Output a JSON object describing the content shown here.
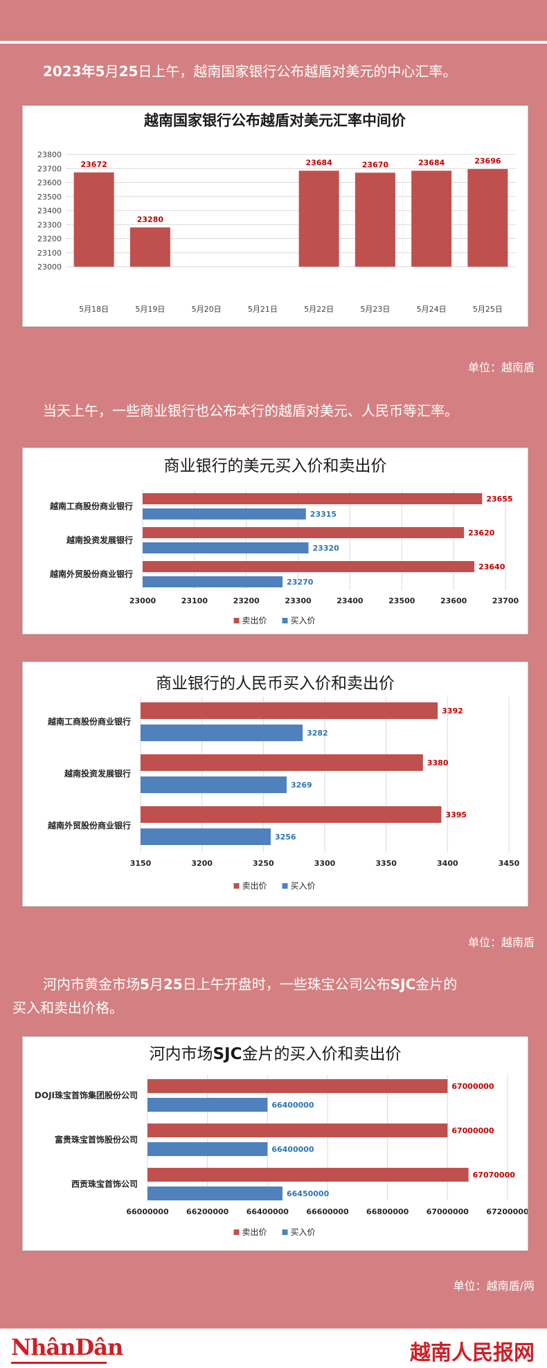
{
  "paragraphs": {
    "p1_a": "2023年",
    "p1_b": "5",
    "p1_c": "月",
    "p1_d": "25",
    "p1_e": "日上午，越南国家银行公布越盾对美元的中心汇率。",
    "p2": "当天上午，一些商业银行也公布本行的越盾对美元、人民币等汇率。",
    "p3_a": "河内市黄金市场",
    "p3_b": "5",
    "p3_c": "月",
    "p3_d": "25",
    "p3_e": "日上午开盘时，一些珠宝公司公布",
    "p3_f": "SJC",
    "p3_g": "金片的",
    "p3_h": "买入和卖出价格。"
  },
  "units": {
    "u1": "单位：越南盾",
    "u2": "单位：越南盾",
    "u3": "单位：越南盾/两"
  },
  "footer": {
    "logo": "NhânDân",
    "site": "越南人民报网"
  },
  "colors": {
    "sell": "#c0504d",
    "buy": "#4f81bd",
    "background": "#d48082"
  },
  "chart_data": [
    {
      "type": "bar",
      "title": "越南国家银行公布越盾对美元汇率中间价",
      "categories": [
        "5月18日",
        "5月19日",
        "5月20日",
        "5月21日",
        "5月22日",
        "5月23日",
        "5月24日",
        "5月25日"
      ],
      "values": [
        23672,
        23280,
        null,
        null,
        23684,
        23670,
        23684,
        23696
      ],
      "data_labels": [
        "23672",
        "23280",
        "",
        "",
        "23684",
        "23670",
        "23684",
        "23696"
      ],
      "ylim": [
        23000,
        23800
      ],
      "yticks": [
        "23000",
        "23100",
        "23200",
        "23300",
        "23400",
        "23500",
        "23600",
        "23700",
        "23800"
      ],
      "grid": true
    },
    {
      "type": "bar",
      "orientation": "horizontal",
      "title": "商业银行的美元买入价和卖出价",
      "categories": [
        "越南工商股份商业银行",
        "越南投资发展银行",
        "越南外贸股份商业银行"
      ],
      "series": [
        {
          "name": "卖出价",
          "values": [
            23655,
            23620,
            23640
          ],
          "labels": [
            "23655",
            "23620",
            "23640"
          ]
        },
        {
          "name": "买入价",
          "values": [
            23315,
            23320,
            23270
          ],
          "labels": [
            "23315",
            "23320",
            "23270"
          ]
        }
      ],
      "xlim": [
        23000,
        23700
      ],
      "xticks": [
        "23000",
        "23100",
        "23200",
        "23300",
        "23400",
        "23500",
        "23600",
        "23700"
      ],
      "legend": "bottom",
      "grid": true
    },
    {
      "type": "bar",
      "orientation": "horizontal",
      "title": "商业银行的人民币买入价和卖出价",
      "categories": [
        "越南工商股份商业银行",
        "越南投资发展银行",
        "越南外贸股份商业银行"
      ],
      "series": [
        {
          "name": "卖出价",
          "values": [
            3392,
            3380,
            3395
          ],
          "labels": [
            "3392",
            "3380",
            "3395"
          ]
        },
        {
          "name": "买入价",
          "values": [
            3282,
            3269,
            3256
          ],
          "labels": [
            "3282",
            "3269",
            "3256"
          ]
        }
      ],
      "xlim": [
        3150,
        3450
      ],
      "xticks": [
        "3150",
        "3200",
        "3250",
        "3300",
        "3350",
        "3400",
        "3450"
      ],
      "legend": "bottom",
      "grid": true
    },
    {
      "type": "bar",
      "orientation": "horizontal",
      "title_a": "河内市场",
      "title_b": "SJC",
      "title_c": "金片的买入价和卖出价",
      "categories": [
        "DOJI珠宝首饰集团股份公司",
        "富贵珠宝首饰股份公司",
        "西贡珠宝首饰公司"
      ],
      "series": [
        {
          "name": "卖出价",
          "values": [
            67000000,
            67000000,
            67070000
          ],
          "labels": [
            "67000000",
            "67000000",
            "67070000"
          ]
        },
        {
          "name": "买入价",
          "values": [
            66400000,
            66400000,
            66450000
          ],
          "labels": [
            "66400000",
            "66400000",
            "66450000"
          ]
        }
      ],
      "xlim": [
        66000000,
        67200000
      ],
      "xticks": [
        "66000000",
        "66200000",
        "66400000",
        "66600000",
        "66800000",
        "67000000",
        "67200000"
      ],
      "legend": "bottom",
      "grid": true
    }
  ]
}
